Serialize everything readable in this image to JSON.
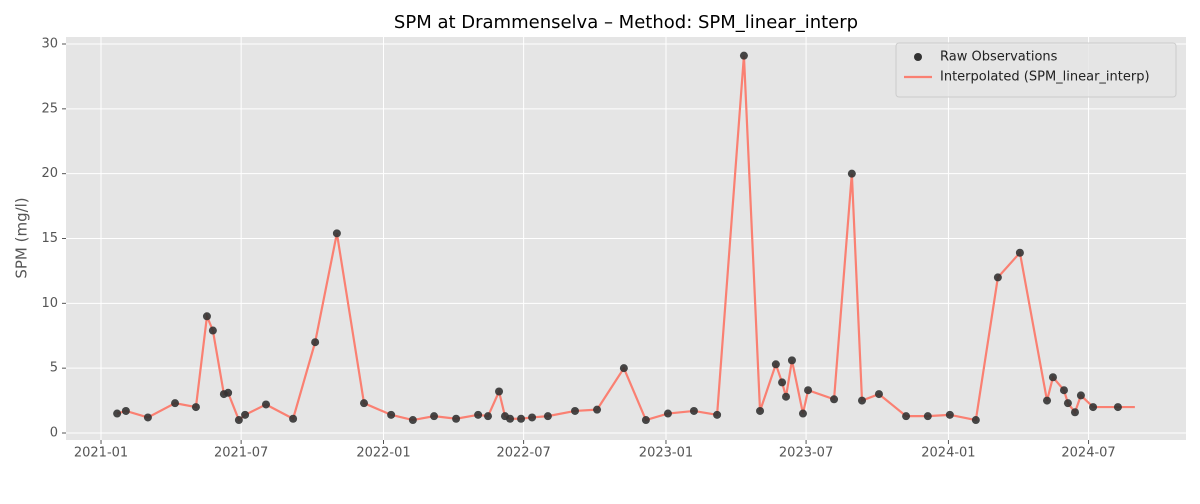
{
  "chart_data": {
    "type": "line",
    "title": "SPM at Drammenselva – Method: SPM_linear_interp",
    "y_label": "SPM (mg/l)",
    "x": [
      2021.057,
      2021.088,
      2021.166,
      2021.262,
      2021.336,
      2021.375,
      2021.396,
      2021.435,
      2021.45,
      2021.488,
      2021.51,
      2021.584,
      2021.68,
      2021.758,
      2021.835,
      2021.931,
      2022.027,
      2022.104,
      2022.179,
      2022.257,
      2022.335,
      2022.37,
      2022.409,
      2022.43,
      2022.448,
      2022.487,
      2022.526,
      2022.582,
      2022.678,
      2022.756,
      2022.851,
      2022.929,
      2023.007,
      2023.099,
      2023.181,
      2023.276,
      2023.333,
      2023.389,
      2023.411,
      2023.425,
      2023.446,
      2023.485,
      2023.503,
      2023.595,
      2023.658,
      2023.694,
      2023.754,
      2023.85,
      2023.927,
      2024.005,
      2024.097,
      2024.175,
      2024.253,
      2024.349,
      2024.37,
      2024.409,
      2024.423,
      2024.448,
      2024.469,
      2024.512,
      2024.6,
      2024.66
    ],
    "series": [
      {
        "name": "Raw Observations",
        "kind": "scatter",
        "color": "#333333",
        "values": [
          1.5,
          1.7,
          1.2,
          2.3,
          2.0,
          9.0,
          7.9,
          3.0,
          3.1,
          1.0,
          1.4,
          2.2,
          1.1,
          7.0,
          15.4,
          2.3,
          1.4,
          1.0,
          1.3,
          1.1,
          1.4,
          1.3,
          3.2,
          1.3,
          1.1,
          1.1,
          1.2,
          1.3,
          1.7,
          1.8,
          5.0,
          1.0,
          1.5,
          1.7,
          1.4,
          29.1,
          1.7,
          5.3,
          3.9,
          2.8,
          5.6,
          1.5,
          3.3,
          2.6,
          20.0,
          2.5,
          3.0,
          1.3,
          1.3,
          1.4,
          1.0,
          12.0,
          13.9,
          2.5,
          4.3,
          3.3,
          2.3,
          1.6,
          2.9,
          2.0,
          2.0,
          null
        ]
      },
      {
        "name": "Interpolated (SPM_linear_interp)",
        "kind": "line",
        "color": "#fa8072",
        "values": [
          1.5,
          1.7,
          1.2,
          2.3,
          2.0,
          9.0,
          7.9,
          3.0,
          3.1,
          1.0,
          1.4,
          2.2,
          1.1,
          7.0,
          15.4,
          2.3,
          1.4,
          1.0,
          1.3,
          1.1,
          1.4,
          1.3,
          3.2,
          1.3,
          1.1,
          1.1,
          1.2,
          1.3,
          1.7,
          1.8,
          5.0,
          1.0,
          1.5,
          1.7,
          1.4,
          29.1,
          1.7,
          5.3,
          3.9,
          2.8,
          5.6,
          1.5,
          3.3,
          2.6,
          20.0,
          2.5,
          3.0,
          1.3,
          1.3,
          1.4,
          1.0,
          12.0,
          13.9,
          2.5,
          4.3,
          3.3,
          2.3,
          1.6,
          2.9,
          2.0,
          2.0,
          2.0
        ]
      }
    ],
    "xlim": [
      2020.876,
      2024.841
    ],
    "xticks": [
      {
        "value": 2021.0,
        "label": "2021-01"
      },
      {
        "value": 2021.496,
        "label": "2021-07"
      },
      {
        "value": 2022.0,
        "label": "2022-01"
      },
      {
        "value": 2022.496,
        "label": "2022-07"
      },
      {
        "value": 2023.0,
        "label": "2023-01"
      },
      {
        "value": 2023.496,
        "label": "2023-07"
      },
      {
        "value": 2024.0,
        "label": "2024-01"
      },
      {
        "value": 2024.496,
        "label": "2024-07"
      }
    ],
    "ylim": [
      -0.54,
      30.54
    ],
    "yticks": [
      0,
      5,
      10,
      15,
      20,
      25,
      30
    ],
    "grid": true,
    "legend": "upper right"
  }
}
